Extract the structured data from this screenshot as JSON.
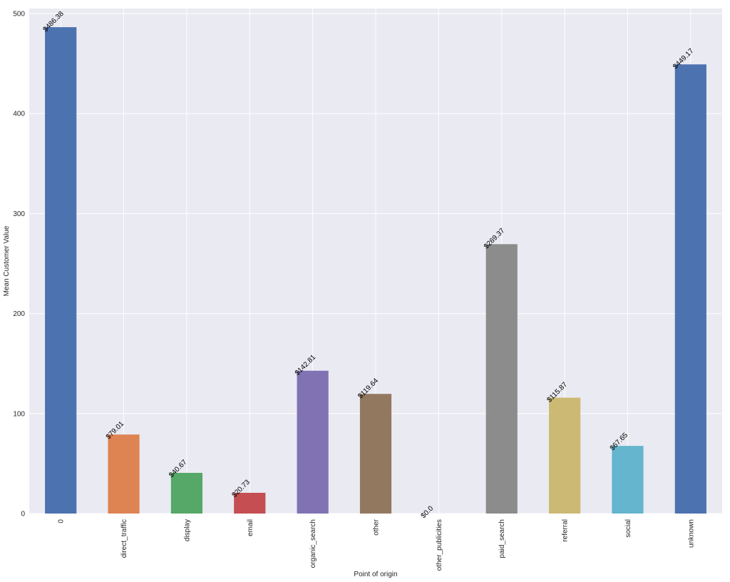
{
  "chart_data": {
    "type": "bar",
    "title": "",
    "xlabel": "Point of origin",
    "ylabel": "Mean Customer Value",
    "ylim": [
      0,
      505
    ],
    "yticks": [
      0,
      100,
      200,
      300,
      400,
      500
    ],
    "grid": true,
    "categories": [
      "0",
      "direct_traffic",
      "display",
      "email",
      "organic_search",
      "other",
      "other_publicities",
      "paid_search",
      "referral",
      "social",
      "unknown"
    ],
    "values": [
      486.38,
      79.01,
      40.67,
      20.73,
      142.81,
      119.64,
      0.0,
      269.37,
      115.87,
      67.65,
      449.17
    ],
    "data_labels": [
      "$486.38",
      "$79.01",
      "$40.67",
      "$20.73",
      "$142.81",
      "$119.64",
      "$0.0",
      "$269.37",
      "$115.87",
      "$67.65",
      "$449.17"
    ],
    "colors": [
      "#4c72b0",
      "#dd8452",
      "#55a868",
      "#c44e52",
      "#8172b3",
      "#937860",
      "#da8bc3",
      "#8c8c8c",
      "#ccb974",
      "#64b5cd",
      "#4c72b0"
    ],
    "background_color": "#eaeaf2",
    "grid_color": "#ffffff"
  }
}
